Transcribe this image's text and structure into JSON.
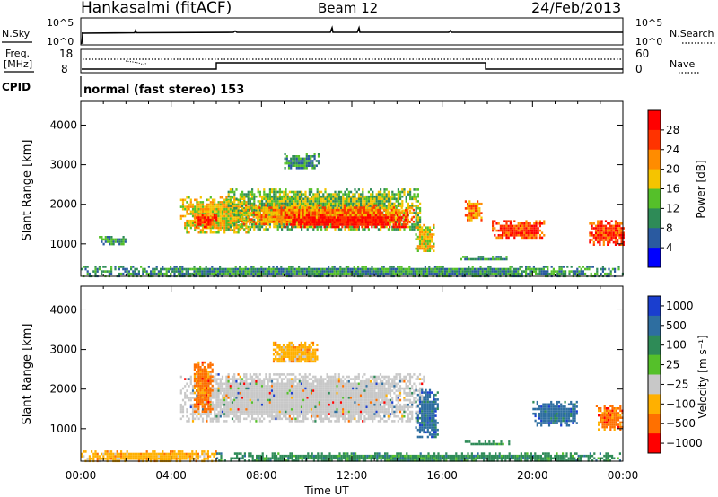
{
  "header": {
    "station": "Hankasalmi (fitACF)",
    "beam": "Beam 12",
    "date": "24/Feb/2013"
  },
  "nsky_panel": {
    "left_label": "N.Sky",
    "right_label": "N.Search",
    "left_ticks": [
      "10^5",
      "10^0"
    ],
    "right_ticks": [
      "10^5",
      "10^0"
    ]
  },
  "freq_panel": {
    "left_label_1": "Freq.",
    "left_label_2": "[MHz]",
    "right_label": "Nave",
    "left_ticks": [
      "18",
      "8"
    ],
    "right_ticks": [
      "60",
      "0"
    ]
  },
  "cpid": {
    "label": "CPID",
    "mode": "normal (fast stereo) 153"
  },
  "x_axis": {
    "title": "Time UT",
    "ticks": [
      "00:00",
      "04:00",
      "08:00",
      "12:00",
      "16:00",
      "20:00",
      "00:00"
    ]
  },
  "power_panel": {
    "y_title": "Slant Range [km]",
    "colorbar_title": "Power [dB]",
    "colorbar_ticks": [
      "28",
      "24",
      "20",
      "16",
      "12",
      "8",
      "4"
    ],
    "colors": [
      "#0000ff",
      "#2a5aa0",
      "#2e8b57",
      "#55c02a",
      "#f5c400",
      "#ff8c00",
      "#ff3300",
      "#ff0000"
    ]
  },
  "velocity_panel": {
    "y_title": "Velocity [m s⁻¹]",
    "y_axis_title": "Slant Range [km]",
    "colorbar_ticks": [
      "1000",
      "500",
      "100",
      "25",
      "−25",
      "−100",
      "−500",
      "−1000"
    ],
    "colors": [
      "#1a3ecf",
      "#2e6ea0",
      "#2e8b57",
      "#55c02a",
      "#c8c8c8",
      "#ffb000",
      "#ff7000",
      "#ff0000"
    ]
  },
  "chart_data": [
    {
      "type": "heatmap",
      "title": "Power [dB]",
      "xlabel": "Time UT",
      "ylabel": "Slant Range [km]",
      "x_ticks": [
        "00:00",
        "04:00",
        "08:00",
        "12:00",
        "16:00",
        "20:00",
        "00:00"
      ],
      "xlim_hours": [
        0,
        24
      ],
      "ylim": [
        180,
        4600
      ],
      "y_ticks": [
        1000,
        2000,
        3000,
        4000
      ],
      "colorbar_ticks": [
        4,
        8,
        12,
        16,
        20,
        24,
        28
      ],
      "regions": [
        {
          "t0": 0.0,
          "t1": 24.0,
          "r0": 200,
          "r1": 450,
          "level": 8
        },
        {
          "t0": 0.8,
          "t1": 2.0,
          "r0": 1000,
          "r1": 1200,
          "level": 8
        },
        {
          "t0": 4.4,
          "t1": 7.4,
          "r0": 1300,
          "r1": 2200,
          "level": 16
        },
        {
          "t0": 5.0,
          "t1": 6.0,
          "r0": 1450,
          "r1": 1750,
          "level": 24
        },
        {
          "t0": 6.5,
          "t1": 15.0,
          "r0": 1350,
          "r1": 2400,
          "level": 12
        },
        {
          "t0": 7.0,
          "t1": 14.8,
          "r0": 1500,
          "r1": 2000,
          "level": 20
        },
        {
          "t0": 9.0,
          "t1": 14.5,
          "r0": 1450,
          "r1": 1750,
          "level": 28
        },
        {
          "t0": 9.0,
          "t1": 10.5,
          "r0": 2900,
          "r1": 3300,
          "level": 8
        },
        {
          "t0": 14.8,
          "t1": 15.6,
          "r0": 800,
          "r1": 1500,
          "level": 16
        },
        {
          "t0": 17.0,
          "t1": 17.7,
          "r0": 1600,
          "r1": 2100,
          "level": 20
        },
        {
          "t0": 18.2,
          "t1": 20.5,
          "r0": 1150,
          "r1": 1600,
          "level": 24
        },
        {
          "t0": 22.5,
          "t1": 24.0,
          "r0": 1000,
          "r1": 1600,
          "level": 24
        },
        {
          "t0": 16.8,
          "t1": 19.0,
          "r0": 600,
          "r1": 700,
          "level": 8
        }
      ]
    },
    {
      "type": "heatmap",
      "title": "Velocity [m s⁻¹]",
      "xlabel": "Time UT",
      "ylabel": "Slant Range [km]",
      "x_ticks": [
        "00:00",
        "04:00",
        "08:00",
        "12:00",
        "16:00",
        "20:00",
        "00:00"
      ],
      "xlim_hours": [
        0,
        24
      ],
      "ylim": [
        180,
        4600
      ],
      "y_ticks": [
        1000,
        2000,
        3000,
        4000
      ],
      "colorbar_ticks": [
        1000,
        500,
        100,
        25,
        -25,
        -100,
        -500,
        -1000
      ],
      "regions": [
        {
          "t0": 0.0,
          "t1": 6.0,
          "r0": 200,
          "r1": 450,
          "velocity": -100
        },
        {
          "t0": 6.0,
          "t1": 24.0,
          "r0": 200,
          "r1": 400,
          "velocity": 100
        },
        {
          "t0": 4.4,
          "t1": 15.2,
          "r0": 1200,
          "r1": 2400,
          "velocity": 0
        },
        {
          "t0": 5.0,
          "t1": 5.8,
          "r0": 1450,
          "r1": 2700,
          "velocity": -500
        },
        {
          "t0": 8.5,
          "t1": 10.5,
          "r0": 2700,
          "r1": 3200,
          "velocity": -100
        },
        {
          "t0": 14.8,
          "t1": 15.8,
          "r0": 800,
          "r1": 2000,
          "velocity": 500
        },
        {
          "t0": 20.0,
          "t1": 22.0,
          "r0": 1100,
          "r1": 1700,
          "velocity": 500
        },
        {
          "t0": 22.8,
          "t1": 24.0,
          "r0": 1000,
          "r1": 1600,
          "velocity": -500
        },
        {
          "t0": 17.0,
          "t1": 19.0,
          "r0": 600,
          "r1": 700,
          "velocity": 100
        }
      ]
    }
  ]
}
